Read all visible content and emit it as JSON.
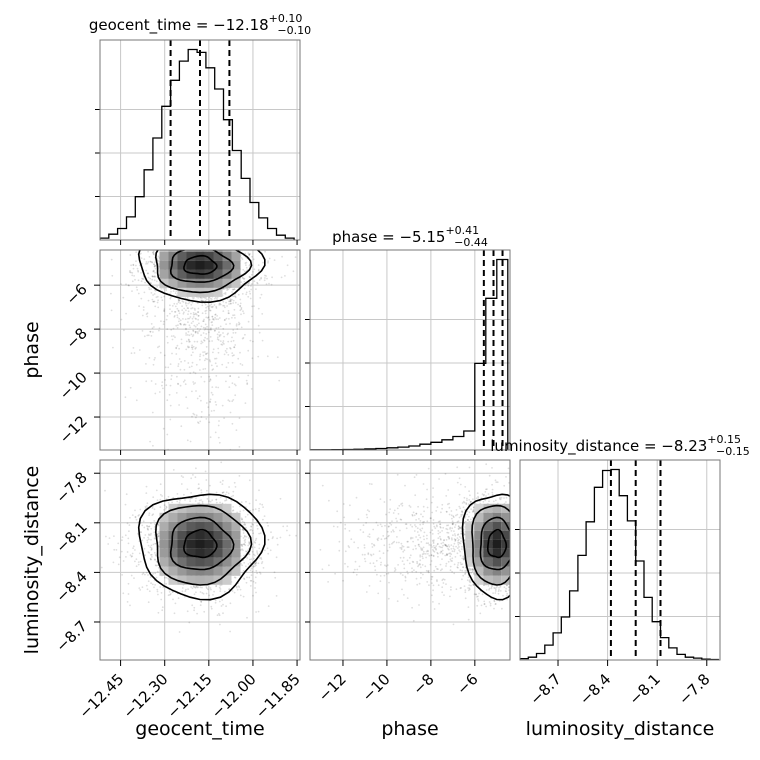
{
  "chart_data": {
    "type": "corner",
    "parameters": [
      {
        "name": "geocent_time",
        "xlabel": "geocent_time",
        "ylabel": "",
        "title": "geocent_time = −12.18",
        "title_sup": "+0.10",
        "title_sub": "−0.10",
        "range": [
          -12.52,
          -11.84
        ],
        "ticks": [
          -12.45,
          -12.3,
          -12.15,
          -12.0,
          -11.85
        ],
        "tick_labels": [
          "−12.45",
          "−12.30",
          "−12.15",
          "−12.00",
          "−11.85"
        ],
        "quantiles": [
          -12.28,
          -12.18,
          -12.08
        ]
      },
      {
        "name": "phase",
        "xlabel": "phase",
        "ylabel": "phase",
        "title": "phase = −5.15",
        "title_sup": "+0.41",
        "title_sub": "−0.44",
        "range": [
          -13.5,
          -4.4
        ],
        "ticks": [
          -12,
          -10,
          -8,
          -6
        ],
        "tick_labels": [
          "−12",
          "−10",
          "−8",
          "−6"
        ],
        "quantiles": [
          -5.59,
          -5.15,
          -4.74
        ]
      },
      {
        "name": "luminosity_distance",
        "xlabel": "luminosity_distance",
        "ylabel": "luminosity_distance",
        "title": "luminosity_distance = −8.23",
        "title_sup": "+0.15",
        "title_sub": "−0.15",
        "range": [
          -8.93,
          -7.72
        ],
        "ticks": [
          -8.7,
          -8.4,
          -8.1,
          -7.8
        ],
        "tick_labels": [
          "−8.7",
          "−8.4",
          "−8.1",
          "−7.8"
        ],
        "quantiles": [
          -8.38,
          -8.23,
          -8.08
        ]
      }
    ],
    "histograms": [
      {
        "param": "geocent_time",
        "bin_edges": [
          -12.52,
          -12.49,
          -12.46,
          -12.43,
          -12.4,
          -12.37,
          -12.34,
          -12.31,
          -12.28,
          -12.25,
          -12.22,
          -12.19,
          -12.16,
          -12.13,
          -12.1,
          -12.07,
          -12.04,
          -12.01,
          -11.98,
          -11.95,
          -11.92,
          -11.89,
          -11.86
        ],
        "counts": [
          0.2,
          0.6,
          1.2,
          2.4,
          4.5,
          7.3,
          10.6,
          13.9,
          16.6,
          18.6,
          19.8,
          19.5,
          17.9,
          15.7,
          12.5,
          9.3,
          6.4,
          3.9,
          2.3,
          1.2,
          0.5,
          0.2
        ]
      },
      {
        "param": "phase",
        "bin_edges": [
          -13.5,
          -13.0,
          -12.5,
          -12.0,
          -11.5,
          -11.0,
          -10.5,
          -10.0,
          -9.5,
          -9.0,
          -8.5,
          -8.0,
          -7.5,
          -7.0,
          -6.5,
          -6.0,
          -5.5,
          -5.0,
          -4.5
        ],
        "counts": [
          0.05,
          0.05,
          0.1,
          0.15,
          0.2,
          0.3,
          0.4,
          0.6,
          0.8,
          1.1,
          1.6,
          2.1,
          2.8,
          3.7,
          5.2,
          23.7,
          41.5,
          52.1
        ]
      },
      {
        "param": "luminosity_distance",
        "bin_edges": [
          -8.93,
          -8.88,
          -8.83,
          -8.78,
          -8.73,
          -8.68,
          -8.63,
          -8.58,
          -8.53,
          -8.48,
          -8.43,
          -8.38,
          -8.33,
          -8.28,
          -8.23,
          -8.18,
          -8.13,
          -8.08,
          -8.03,
          -7.98,
          -7.93,
          -7.88,
          -7.83,
          -7.78,
          -7.73
        ],
        "counts": [
          0.15,
          0.3,
          0.7,
          1.6,
          2.9,
          4.6,
          7.4,
          11.2,
          14.8,
          18.5,
          20.3,
          20.4,
          17.6,
          14.9,
          10.6,
          6.7,
          4.1,
          2.4,
          1.3,
          0.6,
          0.3,
          0.2,
          0.1,
          0.05
        ]
      }
    ],
    "joint": [
      {
        "x": "geocent_time",
        "y": "phase",
        "mean": [
          -12.18,
          -5.1
        ],
        "std": [
          0.1,
          0.75
        ],
        "tail": "lower-y"
      },
      {
        "x": "geocent_time",
        "y": "luminosity_distance",
        "mean": [
          -12.18,
          -8.23
        ],
        "std": [
          0.1,
          0.15
        ],
        "tail": "none"
      },
      {
        "x": "phase",
        "y": "luminosity_distance",
        "mean": [
          -5.0,
          -8.23
        ],
        "std": [
          0.75,
          0.15
        ],
        "tail": "lower-x"
      }
    ]
  }
}
